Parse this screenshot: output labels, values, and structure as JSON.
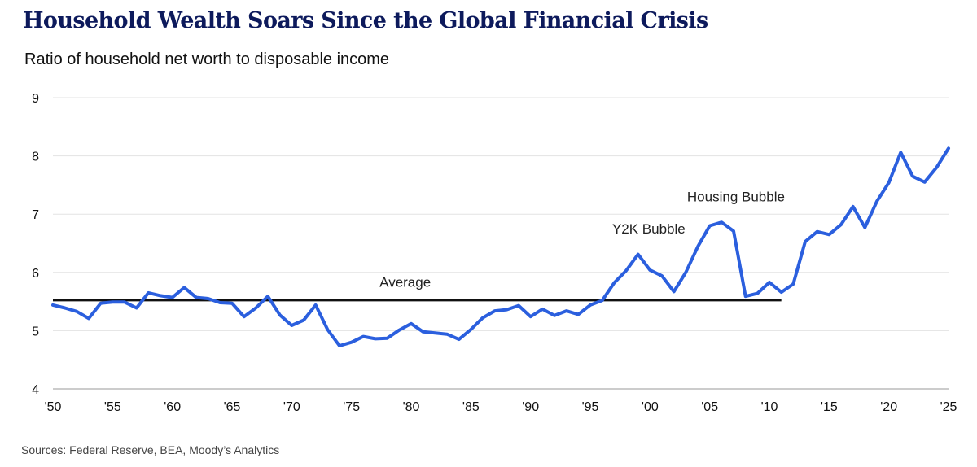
{
  "chart_data": {
    "type": "line",
    "title": "Household Wealth Soars Since the Global Financial Crisis",
    "subtitle": "Ratio of household net worth to disposable income",
    "source": "Sources: Federal Reserve, BEA, Moody’s Analytics",
    "xlabel": "",
    "ylabel": "",
    "xlim": [
      1950,
      2025
    ],
    "ylim": [
      4,
      9
    ],
    "yticks": [
      4,
      5,
      6,
      7,
      8,
      9
    ],
    "xticks": [
      1950,
      1955,
      1960,
      1965,
      1970,
      1975,
      1980,
      1985,
      1990,
      1995,
      2000,
      2005,
      2010,
      2015,
      2020,
      2025
    ],
    "xtick_labels": [
      "'50",
      "'55",
      "'60",
      "'65",
      "'70",
      "'75",
      "'80",
      "'85",
      "'90",
      "'95",
      "'00",
      "'05",
      "'10",
      "'15",
      "'20",
      "'25"
    ],
    "grid": "horizontal",
    "series": [
      {
        "color": "#2b5fde",
        "x": [
          1950,
          1951,
          1952,
          1953,
          1954,
          1955,
          1956,
          1957,
          1958,
          1959,
          1960,
          1961,
          1962,
          1963,
          1964,
          1965,
          1966,
          1967,
          1968,
          1969,
          1970,
          1971,
          1972,
          1973,
          1974,
          1975,
          1976,
          1977,
          1978,
          1979,
          1980,
          1981,
          1982,
          1983,
          1984,
          1985,
          1986,
          1987,
          1988,
          1989,
          1990,
          1991,
          1992,
          1993,
          1994,
          1995,
          1996,
          1997,
          1998,
          1999,
          2000,
          2001,
          2002,
          2003,
          2004,
          2005,
          2006,
          2007,
          2008,
          2009,
          2010,
          2011,
          2012,
          2013,
          2014,
          2015,
          2016,
          2017,
          2018,
          2019,
          2020,
          2021,
          2022,
          2023,
          2024,
          2025
        ],
        "y": [
          5.44,
          5.39,
          5.33,
          5.21,
          5.47,
          5.49,
          5.49,
          5.39,
          5.65,
          5.6,
          5.57,
          5.74,
          5.57,
          5.55,
          5.48,
          5.47,
          5.24,
          5.39,
          5.59,
          5.27,
          5.09,
          5.18,
          5.44,
          5.02,
          4.74,
          4.8,
          4.9,
          4.86,
          4.87,
          5.01,
          5.12,
          4.98,
          4.96,
          4.94,
          4.85,
          5.02,
          5.22,
          5.34,
          5.36,
          5.43,
          5.24,
          5.37,
          5.26,
          5.34,
          5.28,
          5.44,
          5.52,
          5.82,
          6.03,
          6.31,
          6.04,
          5.94,
          5.67,
          6.0,
          6.44,
          6.8,
          6.86,
          6.71,
          5.59,
          5.64,
          5.83,
          5.66,
          5.8,
          6.53,
          6.7,
          6.65,
          6.82,
          7.13,
          6.77,
          7.22,
          7.54,
          8.06,
          7.65,
          7.55,
          7.8,
          8.13
        ]
      }
    ],
    "reference_line": {
      "label": "Average",
      "y": 5.52,
      "x_start": 1950,
      "x_end": 2011
    },
    "annotations": [
      {
        "text": "Y2K Bubble",
        "x": 1999.9,
        "y": 6.67
      },
      {
        "text": "Housing Bubble",
        "x": 2007.2,
        "y": 7.22
      },
      {
        "text": "Average",
        "x": 1979.5,
        "y": 5.75
      }
    ]
  }
}
